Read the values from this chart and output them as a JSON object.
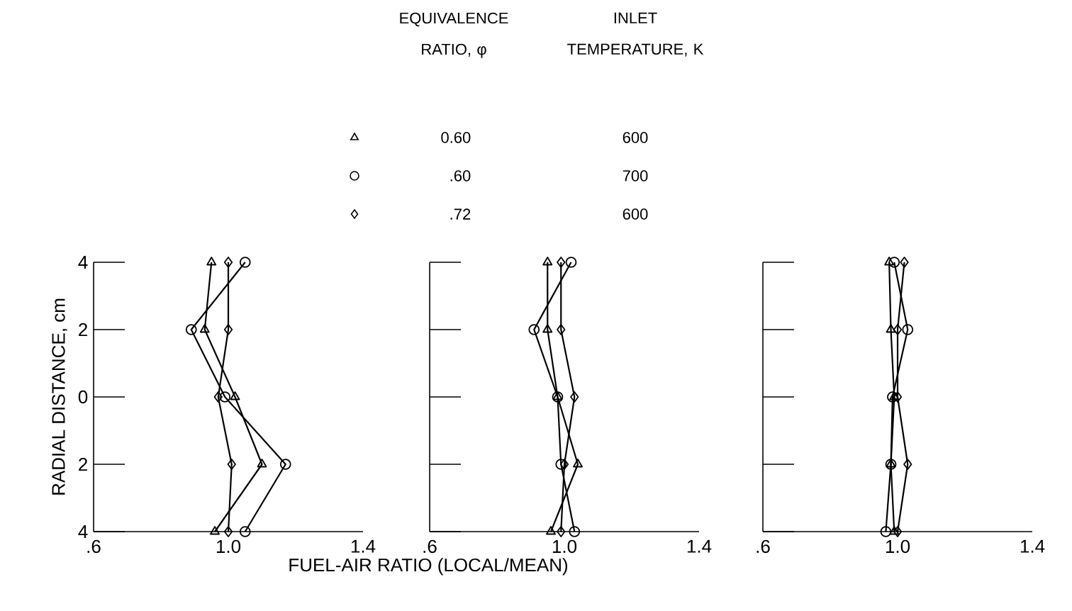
{
  "chart_data": [
    {
      "type": "line",
      "ylabel": "RADIAL DISTANCE, cm",
      "legend": "top",
      "line_style": "solid",
      "grid": false,
      "annotations": [
        "EQUIVALENCE RATIO, φ",
        "INLET TEMPERATURE, K",
        "600",
        "700",
        "600"
      ],
      "xlim": [
        0.6,
        1.4
      ],
      "xticks": [
        {
          "value": 0.6,
          "label": ".6"
        },
        {
          "value": 1.0,
          "label": "1.0"
        },
        {
          "value": 1.4,
          "label": "1.4"
        }
      ],
      "ylim": [
        -4,
        4
      ],
      "yticks": [
        {
          "value": -4,
          "label": "4"
        },
        {
          "value": -2,
          "label": "2"
        },
        0,
        2,
        4
      ],
      "series": [
        {
          "name": "0.60",
          "color": "#000000",
          "marker": "triangle",
          "x": [
            0.95,
            0.93,
            1.02,
            1.1,
            0.96
          ],
          "values": [
            4,
            2,
            0,
            -2,
            -4
          ]
        },
        {
          "name": ".60",
          "color": "#000000",
          "marker": "circle",
          "x": [
            1.05,
            0.89,
            0.99,
            1.17,
            1.05
          ],
          "values": [
            4,
            2,
            0,
            -2,
            -4
          ]
        },
        {
          "name": ".72",
          "color": "#000000",
          "marker": "diamond",
          "x": [
            1.0,
            1.0,
            0.97,
            1.01,
            1.0
          ],
          "values": [
            4,
            2,
            0,
            -2,
            -4
          ]
        }
      ]
    },
    {
      "type": "line",
      "xlabel": "FUEL-AIR RATIO (LOCAL/MEAN)",
      "tick_labels": "x",
      "line_style": "solid",
      "grid": false,
      "xlim": [
        0.6,
        1.4
      ],
      "xticks": [
        {
          "value": 0.6,
          "label": ".6"
        },
        {
          "value": 1.0,
          "label": "1.0"
        },
        {
          "value": 1.4,
          "label": "1.4"
        }
      ],
      "ylim": [
        -4,
        4
      ],
      "yticks": [
        -4,
        -2,
        0,
        2,
        4
      ],
      "series": [
        {
          "color": "#000000",
          "marker": "triangle",
          "x": [
            0.95,
            0.95,
            0.98,
            1.04,
            0.96
          ],
          "values": [
            4,
            2,
            0,
            -2,
            -4
          ]
        },
        {
          "color": "#000000",
          "marker": "circle",
          "x": [
            1.02,
            0.91,
            0.98,
            0.99,
            1.03
          ],
          "values": [
            4,
            2,
            0,
            -2,
            -4
          ]
        },
        {
          "color": "#000000",
          "marker": "diamond",
          "x": [
            0.99,
            0.99,
            1.03,
            1.0,
            0.99
          ],
          "values": [
            4,
            2,
            0,
            -2,
            -4
          ]
        }
      ]
    },
    {
      "type": "line",
      "tick_labels": "x",
      "line_style": "solid",
      "grid": false,
      "xlim": [
        0.6,
        1.4
      ],
      "xticks": [
        {
          "value": 0.6,
          "label": ".6"
        },
        {
          "value": 1.0,
          "label": "1.0"
        },
        {
          "value": 1.4,
          "label": "1.4"
        }
      ],
      "ylim": [
        -4,
        4
      ],
      "yticks": [
        -4,
        -2,
        0,
        2,
        4
      ],
      "series": [
        {
          "color": "#000000",
          "marker": "triangle",
          "x": [
            0.975,
            0.98,
            0.99,
            0.98,
            0.99
          ],
          "values": [
            4,
            2,
            0,
            -2,
            -4
          ]
        },
        {
          "color": "#000000",
          "marker": "circle",
          "x": [
            0.99,
            1.03,
            0.985,
            0.98,
            0.965
          ],
          "values": [
            4,
            2,
            0,
            -2,
            -4
          ]
        },
        {
          "color": "#000000",
          "marker": "diamond",
          "x": [
            1.02,
            1.0,
            1.0,
            1.03,
            1.0
          ],
          "values": [
            4,
            2,
            0,
            -2,
            -4
          ]
        }
      ]
    }
  ]
}
